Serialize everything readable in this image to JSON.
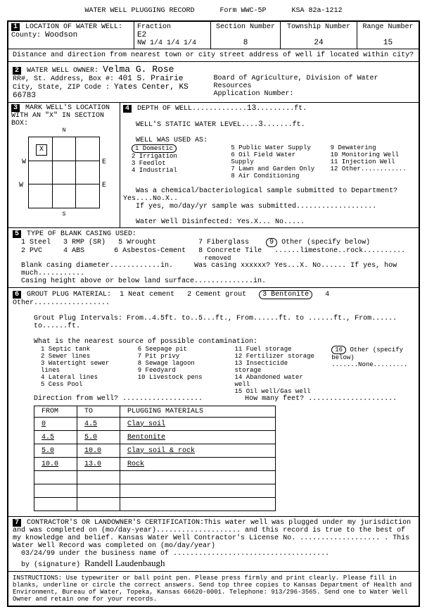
{
  "header": {
    "title": "WATER WELL PLUGGING RECORD",
    "form": "Form WWC-5P",
    "ksa": "KSA 82a-1212"
  },
  "loc": {
    "label": "LOCATION OF WATER WELL:",
    "fraction_label": "Fraction",
    "fraction": "E2",
    "nw": "NW 1/4    1/4   1/4",
    "section_label": "Section Number",
    "section": "8",
    "township_label": "Township Number",
    "township": "24",
    "range_label": "Range Number",
    "range": "15",
    "county_label": "County:",
    "county": "Woodson"
  },
  "dist": "Distance and direction from nearest town or city street address of well if located within city?",
  "owner": {
    "label": "WATER WELL OWNER:",
    "name": "Velma G. Rose",
    "addr_label": "RR#, St. Address, Box #:",
    "addr": "401 S. Prairie",
    "city_label": "City, State, ZIP Code :",
    "city": "Yates Center, KS 66783",
    "board": "Board of Agriculture, Division of Water Resources",
    "app": "Application Number:"
  },
  "mark": {
    "label": "MARK WELL'S LOCATION WITH AN \"X\" IN SECTION BOX:",
    "x": "X"
  },
  "depth": {
    "label": "DEPTH OF WELL",
    "value": "13",
    "unit": "ft.",
    "static_label": "WELL'S STATIC WATER LEVEL",
    "static": "3",
    "used": "WELL WAS USED AS:",
    "u1": "1 Domestic",
    "u5": "5 Public Water Supply",
    "u9": "9 Dewatering",
    "u2": "2 Irrigation",
    "u6": "6 Oil Field Water Supply",
    "u10": "10 Monitoring Well",
    "u3": "3 Feedlot",
    "u7": "7 Lawn and Garden Only",
    "u11": "11 Injection Well",
    "u4": "4 Industrial",
    "u8": "8 Air Conditioning",
    "u12": "12 Other............",
    "chem": "Was a chemical/bacteriological sample submitted to Department? Yes....No.X..",
    "chem2": "If yes, mo/day/yr sample was submitted...................",
    "disinf": "Water Well Disinfected:  Yes.X... No....."
  },
  "casing": {
    "label": "TYPE OF BLANK CASING USED:",
    "c1": "1 Steel",
    "c3": "3 RMP (SR)",
    "c5": "5 Wrought",
    "c7": "7 Fiberglass",
    "c2": "2 PVC",
    "c4": "4 ABS",
    "c6": "6 Asbestos-Cement",
    "c8": "8 Concrete Tile",
    "c9": "9 Other (specify below)",
    "c9v": "......limestone..rock..........",
    "diam": "Blank casing diameter............in.",
    "removed_label": "removed",
    "removed": "Was casing xxxxxx?  Yes...X.   No...... If yes, how much...........",
    "height": "Casing height above or below land surface..............in."
  },
  "grout": {
    "label": "GROUT PLUG MATERIAL:",
    "g1": "1 Neat cement",
    "g2": "2 Cement grout",
    "g3": "3 Bentonite",
    "g4": "4 Other..................",
    "intervals": "Grout Plug Intervals:    From..4.5ft.  to..5...ft.,   From......ft.  to ......ft.,  From...... to......ft.",
    "nearest": "What is the nearest source of possible contamination:",
    "s1": "1 Septic tank",
    "s6": "6 Seepage pit",
    "s11": "11 Fuel storage",
    "s2": "2 Sewer lines",
    "s7": "7 Pit privy",
    "s12": "12 Fertilizer storage",
    "s3": "3 Watertight sewer lines",
    "s8": "8 Sewage lagoon",
    "s13": "13 Insecticide storage",
    "s4": "4 Lateral lines",
    "s9": "9 Feedyard",
    "s14": "14 Abandoned water well",
    "s5": "5 Cess Pool",
    "s10": "10 Livestock pens",
    "s15": "15 Oil well/Gas well",
    "s16": "16 Other (specify below)",
    "s16v": ".......None.........",
    "dir": "Direction from well? ...................",
    "feet": "How many feet? ....................."
  },
  "table": {
    "h1": "FROM",
    "h2": "TO",
    "h3": "PLUGGING MATERIALS",
    "rows": [
      [
        "0",
        "4.5",
        "Clay soil"
      ],
      [
        "4.5",
        "5.0",
        "Bentonite"
      ],
      [
        "5.0",
        "10.0",
        "Clay soil & rock"
      ],
      [
        "10.0",
        "13.0",
        "Rock"
      ],
      [
        "",
        "",
        ""
      ],
      [
        "",
        "",
        ""
      ],
      [
        "",
        "",
        ""
      ]
    ]
  },
  "cert": {
    "text": "CONTRACTOR'S OR LANDOWNER'S CERTIFICATION:This water well was plugged under my jurisdiction and was completed on (mo/day-year).................... and this record is true to the best of my knowledge and belief.  Kansas Water Well Contractor's License No. ................... .  This Water Well Record was completed on (mo/day/year)",
    "date": "03/24/99",
    "under": "under the business name of .....................................",
    "by": "by (signature)",
    "sig": "Randell Laudenbaugh"
  },
  "instr": "INSTRUCTIONS:  Use typewriter or ball point pen.  Please press firmly and print clearly.  Please fill in blanks, underline or circle the correct answers.  Send top three copies to Kansas Department of Health and Environment, Bureau of Water, Topeka, Kansas  66620-0001.  Telephone:  913/296-3565.  Send one to Water Well Owner and retain one for your records."
}
